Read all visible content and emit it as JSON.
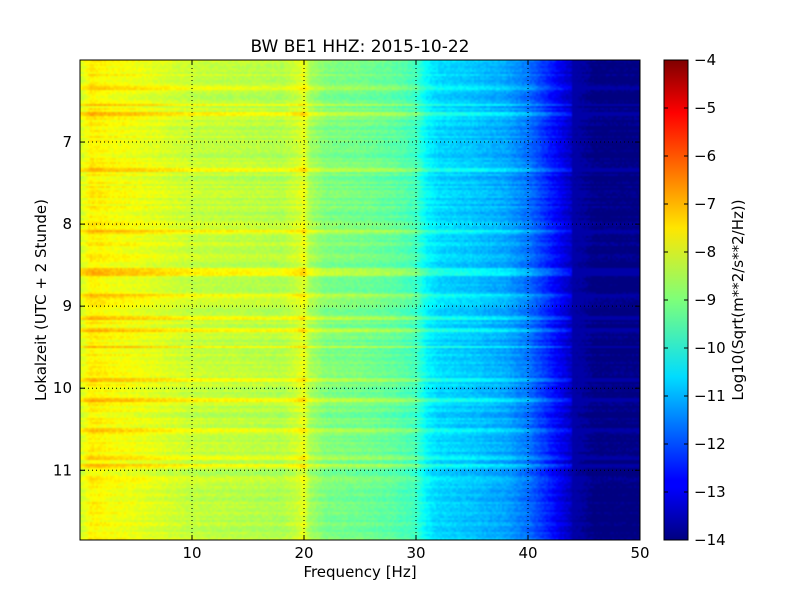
{
  "chart_data": {
    "type": "heatmap",
    "title": "BW BE1 HHZ: 2015-10-22",
    "xlabel": "Frequency [Hz]",
    "ylabel": "Lokalzeit (UTC + 2 Stunde)",
    "xlim": [
      0,
      50
    ],
    "ylim": [
      11.85,
      6.0
    ],
    "y_axis_inverted": true,
    "grid": true,
    "x_ticks": [
      10,
      20,
      30,
      40,
      50
    ],
    "x_tick_labels": [
      "10",
      "20",
      "30",
      "40",
      "50"
    ],
    "y_ticks": [
      7,
      8,
      9,
      10,
      11
    ],
    "y_tick_labels": [
      "7",
      "8",
      "9",
      "10",
      "11"
    ],
    "colorbar": {
      "label": "Log10(Sqrt(m**2/s**2/Hz))",
      "colormap": "jet",
      "range": [
        -14,
        -4
      ],
      "ticks": [
        -4,
        -5,
        -6,
        -7,
        -8,
        -9,
        -10,
        -11,
        -12,
        -13,
        -14
      ],
      "tick_labels": [
        "−4",
        "−5",
        "−6",
        "−7",
        "−8",
        "−9",
        "−10",
        "−11",
        "−12",
        "−13",
        "−14"
      ]
    },
    "frequency_profile_hz": [
      0,
      1,
      3,
      5,
      10,
      15,
      18,
      19.5,
      20,
      20.5,
      22,
      25,
      28,
      30,
      31,
      32,
      35,
      38,
      40,
      42,
      44,
      46,
      50
    ],
    "frequency_profile_log10": [
      -8.2,
      -7.6,
      -7.8,
      -7.9,
      -8.3,
      -8.4,
      -8.5,
      -8.2,
      -7.9,
      -8.6,
      -9.0,
      -9.1,
      -9.3,
      -9.6,
      -10.3,
      -10.6,
      -10.8,
      -11.1,
      -11.6,
      -12.5,
      -13.4,
      -14.0,
      -14.0
    ],
    "bright_bands_local_hour": [
      6.35,
      6.55,
      6.65,
      7.35,
      8.1,
      8.55,
      8.6,
      8.88,
      9.15,
      9.3,
      9.5,
      9.9,
      10.15,
      10.5,
      10.85,
      10.95
    ]
  }
}
